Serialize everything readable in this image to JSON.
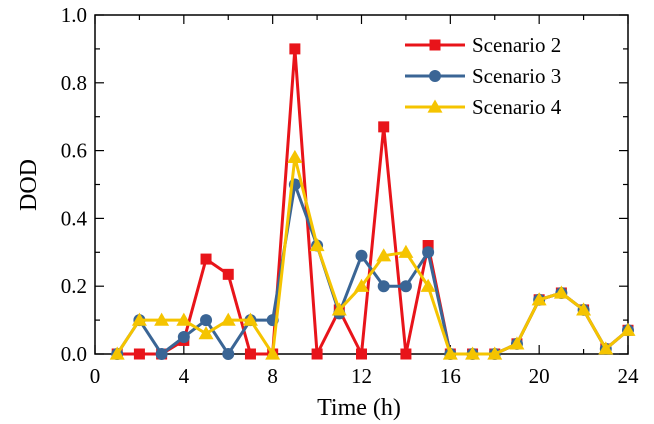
{
  "chart_data": {
    "type": "line",
    "title": "",
    "xlabel": "Time (h)",
    "ylabel": "DOD",
    "xlim": [
      0,
      24
    ],
    "ylim": [
      0,
      1.0
    ],
    "x_ticks": [
      "0",
      "4",
      "8",
      "12",
      "16",
      "20",
      "24"
    ],
    "y_ticks": [
      "0.0",
      "0.2",
      "0.4",
      "0.6",
      "0.8",
      "1.0"
    ],
    "grid": false,
    "legend_position": "top-right",
    "x": [
      1,
      2,
      3,
      4,
      5,
      6,
      7,
      8,
      9,
      10,
      11,
      12,
      13,
      14,
      15,
      16,
      17,
      18,
      19,
      20,
      21,
      22,
      23,
      24
    ],
    "series": [
      {
        "name": "Scenario 2",
        "color": "#e8141a",
        "marker": "square",
        "values": [
          0,
          0,
          0,
          0.04,
          0.28,
          0.235,
          0,
          0,
          0.9,
          0,
          0.13,
          0,
          0.67,
          0,
          0.32,
          0,
          0,
          0,
          0.03,
          0.16,
          0.18,
          0.13,
          0.015,
          0.07
        ]
      },
      {
        "name": "Scenario 3",
        "color": "#3a6595",
        "marker": "circle",
        "values": [
          0,
          0.1,
          0,
          0.05,
          0.1,
          0,
          0.1,
          0.1,
          0.5,
          0.32,
          0.12,
          0.29,
          0.2,
          0.2,
          0.3,
          0,
          0,
          0,
          0.03,
          0.16,
          0.18,
          0.13,
          0.015,
          0.07
        ]
      },
      {
        "name": "Scenario 4",
        "color": "#f5c400",
        "marker": "triangle",
        "values": [
          0,
          0.1,
          0.1,
          0.1,
          0.06,
          0.1,
          0.1,
          0,
          0.58,
          0.32,
          0.13,
          0.2,
          0.29,
          0.3,
          0.2,
          0,
          0,
          0,
          0.03,
          0.16,
          0.18,
          0.13,
          0.015,
          0.07
        ]
      }
    ]
  }
}
